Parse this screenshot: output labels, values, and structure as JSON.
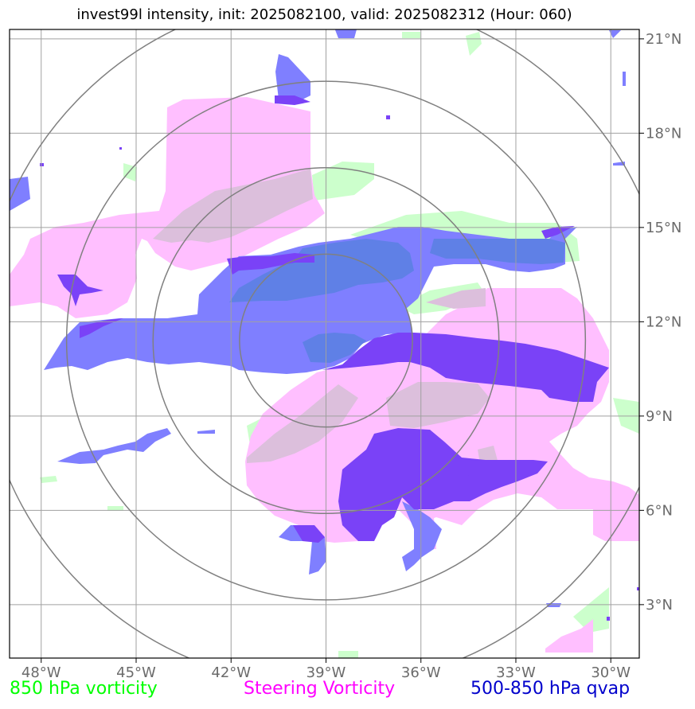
{
  "title": "invest99l intensity, init: 2025082100, valid: 2025082312 (Hour: 060)",
  "legend": [
    {
      "label": "850 hPa vorticity",
      "color": "#00ff00"
    },
    {
      "label": "Steering Vorticity",
      "color": "#ff00ff"
    },
    {
      "label": "500-850 hPa qvap",
      "color": "#0000cc"
    }
  ],
  "map": {
    "lon_range": [
      -49,
      -29.1
    ],
    "lat_range": [
      1.3,
      21.3
    ],
    "lon_ticks": [
      -48,
      -45,
      -42,
      -39,
      -36,
      -33,
      -30
    ],
    "lat_ticks": [
      3,
      6,
      9,
      12,
      15,
      18,
      21
    ],
    "lon_labels": [
      "48°W",
      "45°W",
      "42°W",
      "39°W",
      "36°W",
      "33°W",
      "30°W"
    ],
    "lat_labels": [
      "3°N",
      "6°N",
      "9°N",
      "12°N",
      "15°N",
      "18°N",
      "21°N"
    ],
    "storm_center": {
      "lon": -39.0,
      "lat": 11.4
    },
    "range_rings_deg": [
      2.75,
      5.5,
      8.25,
      11.0
    ],
    "colors": {
      "vort850": "#ccffcc",
      "steering": "#ffbfff",
      "qvap": "#7f7fff",
      "qvap_strong": "#7a42f7",
      "grid": "#a0a0a0",
      "ring": "#808080"
    }
  }
}
